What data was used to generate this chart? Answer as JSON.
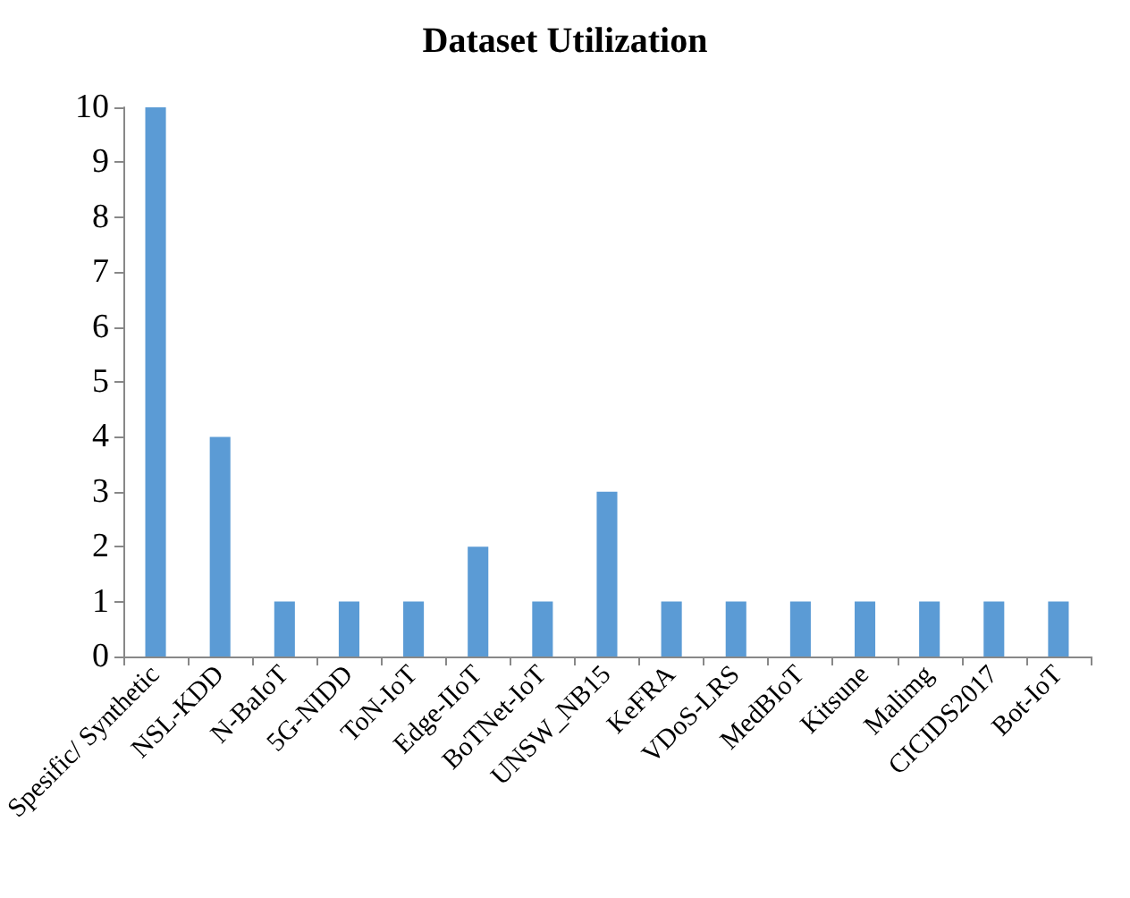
{
  "chart_data": {
    "type": "bar",
    "title": "Dataset Utilization",
    "categories": [
      "Spesific/ Synthetic",
      "NSL-KDD",
      "N-BaIoT",
      "5G-NIDD",
      "ToN-IoT",
      "Edge-IIoT",
      "BoTNet-IoT",
      "UNSW_NB15",
      "KeFRA",
      "VDoS-LRS",
      "MedBIoT",
      "Kitsune",
      "Malimg",
      "CICIDS2017",
      "Bot-IoT"
    ],
    "values": [
      10,
      4,
      1,
      1,
      1,
      2,
      1,
      3,
      1,
      1,
      1,
      1,
      1,
      1,
      1
    ],
    "color": "#5b9bd5",
    "ylim": [
      0,
      10
    ],
    "yticks": [
      0,
      1,
      2,
      3,
      4,
      5,
      6,
      7,
      8,
      9,
      10
    ],
    "grid": false
  }
}
